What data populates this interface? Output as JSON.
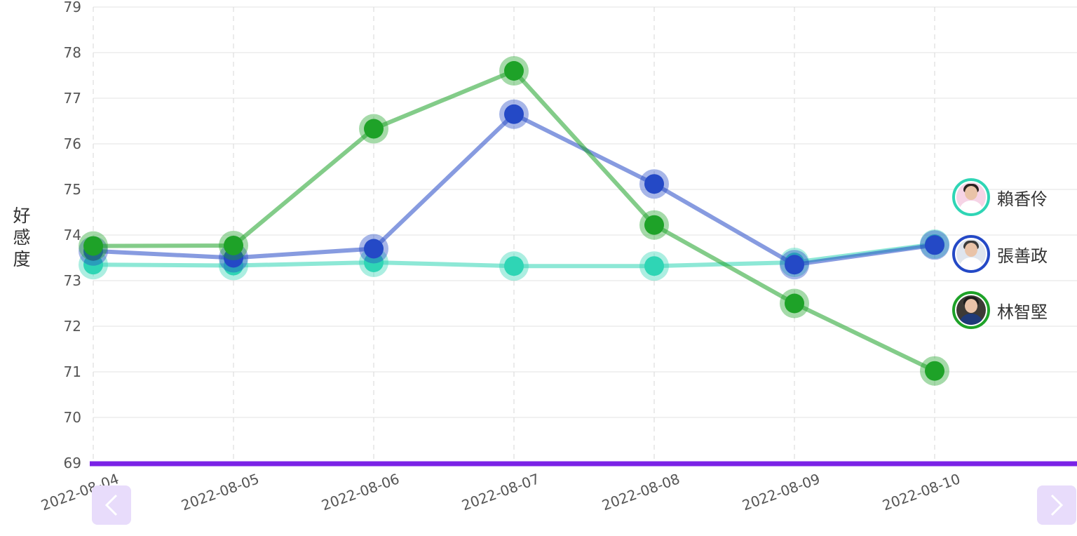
{
  "chart_data": {
    "type": "line",
    "ylabel": "好感度",
    "ylim": [
      69,
      79
    ],
    "yticks": [
      "69",
      "70",
      "71",
      "72",
      "73",
      "74",
      "75",
      "76",
      "77",
      "78",
      "79"
    ],
    "x": [
      "2022-08-04",
      "2022-08-05",
      "2022-08-06",
      "2022-08-07",
      "2022-08-08",
      "2022-08-09",
      "2022-08-10"
    ],
    "grid": true,
    "legend_position": "right",
    "series": [
      {
        "name": "賴香伶",
        "color": "#2fd5b5",
        "values": [
          73.35,
          73.33,
          73.4,
          73.32,
          73.32,
          73.4,
          73.8
        ]
      },
      {
        "name": "張善政",
        "color": "#2449c6",
        "values": [
          73.65,
          73.5,
          73.7,
          76.65,
          75.12,
          73.35,
          73.78
        ]
      },
      {
        "name": "林智堅",
        "color": "#1ea228",
        "values": [
          73.76,
          73.77,
          76.33,
          77.6,
          74.22,
          72.5,
          71.02
        ]
      }
    ],
    "baseline_color": "#7b22e6"
  },
  "legend": [
    {
      "name": "賴香伶",
      "color": "#2fd5b5",
      "icon": "candidate-photo"
    },
    {
      "name": "張善政",
      "color": "#2449c6",
      "icon": "candidate-photo"
    },
    {
      "name": "林智堅",
      "color": "#1ea228",
      "icon": "candidate-photo"
    }
  ],
  "nav": {
    "prev_icon": "chevron-left-icon",
    "next_icon": "chevron-right-icon",
    "button_color": "#e8dcfb"
  }
}
